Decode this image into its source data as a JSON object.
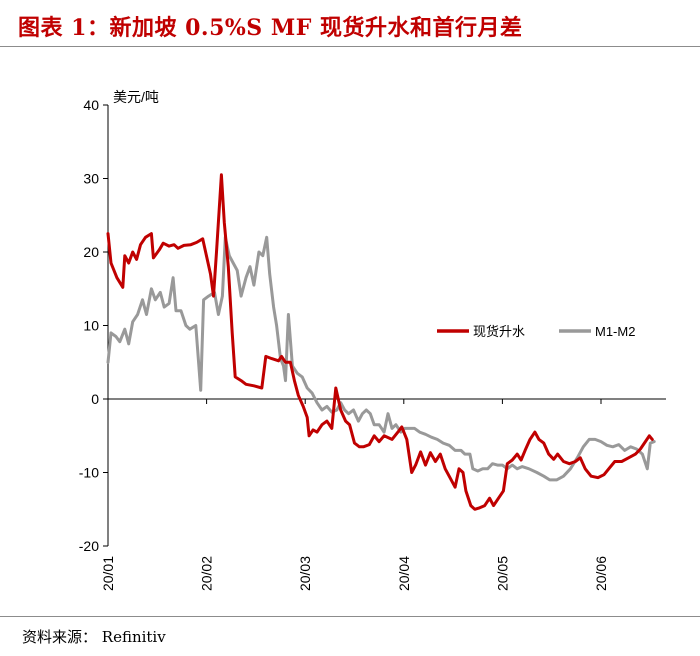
{
  "header": {
    "title": "图表 1：新加坡 0.5%S MF 现货升水和首行月差"
  },
  "footer": {
    "source": "资料来源： Refinitiv"
  },
  "chart_data": {
    "type": "line",
    "title": "图表 1：新加坡 0.5%S MF 现货升水和首行月差",
    "ylabel": "美元/吨",
    "xlabel": "",
    "ylim": [
      -20,
      40
    ],
    "yticks": [
      40,
      30,
      20,
      10,
      0,
      -10,
      -20
    ],
    "xlim": [
      0,
      5.55
    ],
    "xticks": [
      {
        "value": 0,
        "label": "20/01"
      },
      {
        "value": 1,
        "label": "20/02"
      },
      {
        "value": 2,
        "label": "20/03"
      },
      {
        "value": 3,
        "label": "20/04"
      },
      {
        "value": 4,
        "label": "20/05"
      },
      {
        "value": 5,
        "label": "20/06"
      }
    ],
    "legend_position": "right-middle",
    "series": [
      {
        "name": "现货升水",
        "color": "#c00000",
        "points": [
          [
            0.0,
            22.5
          ],
          [
            0.03,
            18.5
          ],
          [
            0.09,
            16.5
          ],
          [
            0.15,
            15.2
          ],
          [
            0.17,
            19.5
          ],
          [
            0.21,
            18.5
          ],
          [
            0.25,
            20.0
          ],
          [
            0.29,
            19.0
          ],
          [
            0.33,
            21.0
          ],
          [
            0.38,
            22.0
          ],
          [
            0.44,
            22.5
          ],
          [
            0.46,
            19.2
          ],
          [
            0.52,
            20.3
          ],
          [
            0.56,
            21.2
          ],
          [
            0.62,
            20.8
          ],
          [
            0.67,
            21.0
          ],
          [
            0.71,
            20.5
          ],
          [
            0.77,
            20.9
          ],
          [
            0.84,
            21.0
          ],
          [
            0.9,
            21.3
          ],
          [
            0.96,
            21.8
          ],
          [
            1.04,
            17.0
          ],
          [
            1.07,
            14.0
          ],
          [
            1.1,
            20.0
          ],
          [
            1.15,
            30.5
          ],
          [
            1.18,
            24.0
          ],
          [
            1.22,
            18.0
          ],
          [
            1.26,
            9.0
          ],
          [
            1.29,
            3.0
          ],
          [
            1.35,
            2.5
          ],
          [
            1.4,
            2.0
          ],
          [
            1.48,
            1.8
          ],
          [
            1.56,
            1.5
          ],
          [
            1.6,
            5.8
          ],
          [
            1.66,
            5.5
          ],
          [
            1.73,
            5.2
          ],
          [
            1.76,
            5.8
          ],
          [
            1.8,
            5.0
          ],
          [
            1.85,
            5.0
          ],
          [
            1.89,
            2.5
          ],
          [
            1.93,
            0.5
          ],
          [
            1.98,
            -1.0
          ],
          [
            2.02,
            -2.5
          ],
          [
            2.04,
            -5.0
          ],
          [
            2.08,
            -4.2
          ],
          [
            2.12,
            -4.5
          ],
          [
            2.17,
            -3.5
          ],
          [
            2.22,
            -3.0
          ],
          [
            2.27,
            -4.0
          ],
          [
            2.31,
            1.5
          ],
          [
            2.36,
            -1.5
          ],
          [
            2.41,
            -3.0
          ],
          [
            2.45,
            -3.5
          ],
          [
            2.5,
            -6.0
          ],
          [
            2.55,
            -6.5
          ],
          [
            2.59,
            -6.5
          ],
          [
            2.65,
            -6.2
          ],
          [
            2.7,
            -5.0
          ],
          [
            2.75,
            -5.8
          ],
          [
            2.8,
            -5.0
          ],
          [
            2.88,
            -5.5
          ],
          [
            2.94,
            -4.5
          ],
          [
            2.98,
            -3.8
          ],
          [
            3.03,
            -5.5
          ],
          [
            3.08,
            -10.0
          ],
          [
            3.12,
            -9.0
          ],
          [
            3.17,
            -7.2
          ],
          [
            3.22,
            -9.0
          ],
          [
            3.27,
            -7.3
          ],
          [
            3.32,
            -8.5
          ],
          [
            3.37,
            -7.5
          ],
          [
            3.42,
            -9.5
          ],
          [
            3.46,
            -10.5
          ],
          [
            3.52,
            -12.0
          ],
          [
            3.56,
            -9.5
          ],
          [
            3.6,
            -10.0
          ],
          [
            3.63,
            -12.5
          ],
          [
            3.68,
            -14.5
          ],
          [
            3.72,
            -15.0
          ],
          [
            3.77,
            -14.8
          ],
          [
            3.82,
            -14.5
          ],
          [
            3.87,
            -13.5
          ],
          [
            3.91,
            -14.5
          ],
          [
            3.96,
            -13.5
          ],
          [
            4.01,
            -12.5
          ],
          [
            4.05,
            -8.8
          ],
          [
            4.1,
            -8.3
          ],
          [
            4.15,
            -7.5
          ],
          [
            4.19,
            -8.3
          ],
          [
            4.23,
            -7.0
          ],
          [
            4.28,
            -5.5
          ],
          [
            4.33,
            -4.5
          ],
          [
            4.37,
            -5.5
          ],
          [
            4.42,
            -6.0
          ],
          [
            4.47,
            -7.5
          ],
          [
            4.52,
            -8.2
          ],
          [
            4.56,
            -7.5
          ],
          [
            4.62,
            -8.5
          ],
          [
            4.68,
            -8.8
          ],
          [
            4.74,
            -8.5
          ],
          [
            4.79,
            -8.0
          ],
          [
            4.84,
            -9.5
          ],
          [
            4.9,
            -10.5
          ],
          [
            4.97,
            -10.7
          ],
          [
            5.03,
            -10.3
          ],
          [
            5.09,
            -9.3
          ],
          [
            5.14,
            -8.5
          ],
          [
            5.21,
            -8.5
          ],
          [
            5.28,
            -8.0
          ],
          [
            5.35,
            -7.5
          ],
          [
            5.4,
            -6.8
          ],
          [
            5.45,
            -5.8
          ],
          [
            5.49,
            -5.0
          ],
          [
            5.52,
            -5.5
          ]
        ]
      },
      {
        "name": "M1-M2",
        "color": "#999999",
        "points": [
          [
            0.0,
            5.0
          ],
          [
            0.03,
            9.0
          ],
          [
            0.08,
            8.5
          ],
          [
            0.12,
            7.8
          ],
          [
            0.17,
            9.5
          ],
          [
            0.21,
            7.5
          ],
          [
            0.25,
            10.5
          ],
          [
            0.3,
            11.5
          ],
          [
            0.35,
            13.5
          ],
          [
            0.39,
            11.5
          ],
          [
            0.44,
            15.0
          ],
          [
            0.48,
            13.5
          ],
          [
            0.53,
            14.5
          ],
          [
            0.57,
            12.5
          ],
          [
            0.62,
            13.0
          ],
          [
            0.66,
            16.5
          ],
          [
            0.69,
            12.0
          ],
          [
            0.74,
            12.0
          ],
          [
            0.79,
            10.0
          ],
          [
            0.83,
            9.5
          ],
          [
            0.89,
            10.0
          ],
          [
            0.94,
            1.2
          ],
          [
            0.97,
            13.5
          ],
          [
            1.02,
            14.0
          ],
          [
            1.08,
            14.5
          ],
          [
            1.12,
            11.5
          ],
          [
            1.16,
            14.0
          ],
          [
            1.19,
            22.0
          ],
          [
            1.23,
            19.5
          ],
          [
            1.27,
            18.5
          ],
          [
            1.31,
            17.5
          ],
          [
            1.35,
            14.0
          ],
          [
            1.4,
            16.5
          ],
          [
            1.44,
            18.0
          ],
          [
            1.48,
            15.5
          ],
          [
            1.53,
            20.0
          ],
          [
            1.57,
            19.5
          ],
          [
            1.61,
            22.0
          ],
          [
            1.64,
            17.0
          ],
          [
            1.68,
            12.5
          ],
          [
            1.71,
            10.0
          ],
          [
            1.75,
            5.5
          ],
          [
            1.78,
            4.5
          ],
          [
            1.8,
            2.5
          ],
          [
            1.83,
            11.5
          ],
          [
            1.87,
            4.5
          ],
          [
            1.92,
            3.5
          ],
          [
            1.97,
            3.0
          ],
          [
            2.02,
            1.5
          ],
          [
            2.07,
            0.8
          ],
          [
            2.12,
            -0.5
          ],
          [
            2.17,
            -1.5
          ],
          [
            2.22,
            -1.0
          ],
          [
            2.27,
            -1.8
          ],
          [
            2.32,
            -1.5
          ],
          [
            2.36,
            -0.5
          ],
          [
            2.4,
            -1.5
          ],
          [
            2.44,
            -2.0
          ],
          [
            2.49,
            -1.5
          ],
          [
            2.54,
            -3.0
          ],
          [
            2.58,
            -2.0
          ],
          [
            2.62,
            -1.5
          ],
          [
            2.66,
            -2.0
          ],
          [
            2.7,
            -3.5
          ],
          [
            2.75,
            -3.5
          ],
          [
            2.8,
            -4.5
          ],
          [
            2.84,
            -2.0
          ],
          [
            2.88,
            -4.0
          ],
          [
            2.92,
            -3.5
          ],
          [
            2.97,
            -4.5
          ],
          [
            3.01,
            -4.0
          ],
          [
            3.06,
            -4.0
          ],
          [
            3.11,
            -4.0
          ],
          [
            3.16,
            -4.5
          ],
          [
            3.22,
            -4.8
          ],
          [
            3.28,
            -5.2
          ],
          [
            3.34,
            -5.5
          ],
          [
            3.4,
            -6.0
          ],
          [
            3.46,
            -6.3
          ],
          [
            3.52,
            -7.0
          ],
          [
            3.58,
            -7.0
          ],
          [
            3.62,
            -7.5
          ],
          [
            3.67,
            -7.5
          ],
          [
            3.7,
            -9.5
          ],
          [
            3.75,
            -9.8
          ],
          [
            3.8,
            -9.5
          ],
          [
            3.85,
            -9.5
          ],
          [
            3.9,
            -8.8
          ],
          [
            3.95,
            -9.0
          ],
          [
            4.0,
            -9.0
          ],
          [
            4.05,
            -9.5
          ],
          [
            4.1,
            -9.0
          ],
          [
            4.15,
            -9.5
          ],
          [
            4.2,
            -9.2
          ],
          [
            4.27,
            -9.5
          ],
          [
            4.35,
            -10.0
          ],
          [
            4.42,
            -10.5
          ],
          [
            4.48,
            -11.0
          ],
          [
            4.55,
            -11.0
          ],
          [
            4.62,
            -10.5
          ],
          [
            4.69,
            -9.5
          ],
          [
            4.76,
            -8.0
          ],
          [
            4.82,
            -6.5
          ],
          [
            4.88,
            -5.5
          ],
          [
            4.94,
            -5.5
          ],
          [
            5.0,
            -5.8
          ],
          [
            5.06,
            -6.3
          ],
          [
            5.12,
            -6.5
          ],
          [
            5.18,
            -6.2
          ],
          [
            5.24,
            -7.0
          ],
          [
            5.3,
            -6.5
          ],
          [
            5.36,
            -6.8
          ],
          [
            5.42,
            -7.5
          ],
          [
            5.47,
            -9.5
          ],
          [
            5.5,
            -6.0
          ],
          [
            5.54,
            -5.8
          ]
        ]
      }
    ]
  }
}
